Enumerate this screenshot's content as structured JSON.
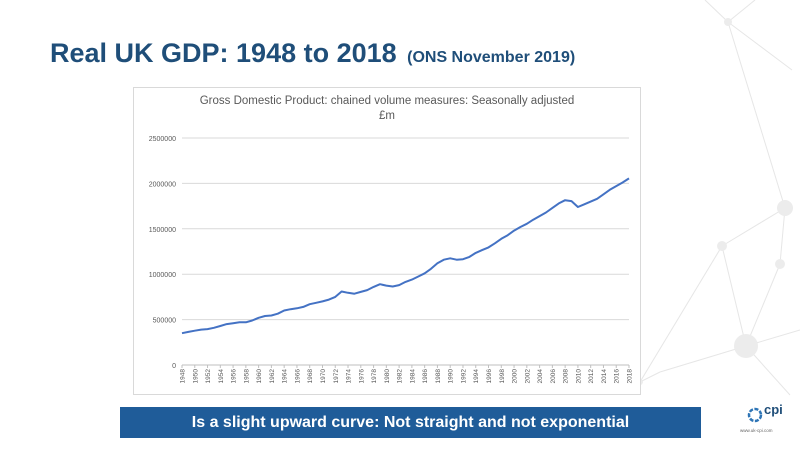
{
  "slide": {
    "title": "Real UK GDP: 1948 to 2018",
    "subtitle": "(ONS November 2019)",
    "banner": "Is a slight upward curve: Not straight and not exponential"
  },
  "logo": {
    "text": "cpi",
    "url": "www.uk-cpi.com",
    "icon": "cpi-ring-icon",
    "color": "#1f4e79"
  },
  "colors": {
    "accent": "#1f4e79",
    "banner": "#1f5c99",
    "line": "#4472c4"
  },
  "chart_data": {
    "type": "line",
    "title": "Gross Domestic Product: chained volume measures: Seasonally adjusted",
    "subtitle": "£m",
    "xlabel": "",
    "ylabel": "",
    "ylim": [
      0,
      2500000
    ],
    "yticks": [
      0,
      500000,
      1000000,
      1500000,
      2000000,
      2500000
    ],
    "ytick_labels": [
      "0",
      "500000",
      "1000000",
      "1500000",
      "2000000",
      "2500000"
    ],
    "xtick_labels": [
      "1948",
      "1950",
      "1952",
      "1954",
      "1956",
      "1958",
      "1960",
      "1962",
      "1964",
      "1966",
      "1968",
      "1970",
      "1972",
      "1974",
      "1976",
      "1978",
      "1980",
      "1982",
      "1984",
      "1986",
      "1988",
      "1990",
      "1992",
      "1994",
      "1996",
      "1998",
      "2000",
      "2002",
      "2004",
      "2006",
      "2008",
      "2010",
      "2012",
      "2014",
      "2016",
      "2018"
    ],
    "grid": true,
    "legend": "none",
    "series": [
      {
        "x": [
          1948,
          1949,
          1950,
          1951,
          1952,
          1953,
          1954,
          1955,
          1956,
          1957,
          1958,
          1959,
          1960,
          1961,
          1962,
          1963,
          1964,
          1965,
          1966,
          1967,
          1968,
          1969,
          1970,
          1971,
          1972,
          1973,
          1974,
          1975,
          1976,
          1977,
          1978,
          1979,
          1980,
          1981,
          1982,
          1983,
          1984,
          1985,
          1986,
          1987,
          1988,
          1989,
          1990,
          1991,
          1992,
          1993,
          1994,
          1995,
          1996,
          1997,
          1998,
          1999,
          2000,
          2001,
          2002,
          2003,
          2004,
          2005,
          2006,
          2007,
          2008,
          2009,
          2010,
          2011,
          2012,
          2013,
          2014,
          2015,
          2016,
          2017,
          2018
        ],
        "values": [
          350000,
          365000,
          378000,
          390000,
          395000,
          410000,
          430000,
          450000,
          460000,
          470000,
          470000,
          490000,
          520000,
          540000,
          545000,
          565000,
          600000,
          615000,
          625000,
          640000,
          670000,
          685000,
          700000,
          720000,
          750000,
          810000,
          795000,
          785000,
          805000,
          825000,
          860000,
          890000,
          875000,
          865000,
          880000,
          915000,
          940000,
          975000,
          1010000,
          1060000,
          1120000,
          1160000,
          1175000,
          1160000,
          1165000,
          1190000,
          1235000,
          1265000,
          1295000,
          1340000,
          1390000,
          1430000,
          1480000,
          1520000,
          1555000,
          1600000,
          1640000,
          1680000,
          1730000,
          1780000,
          1815000,
          1805000,
          1740000,
          1770000,
          1800000,
          1830000,
          1880000,
          1930000,
          1970000,
          2010000,
          2055000
        ]
      }
    ]
  }
}
